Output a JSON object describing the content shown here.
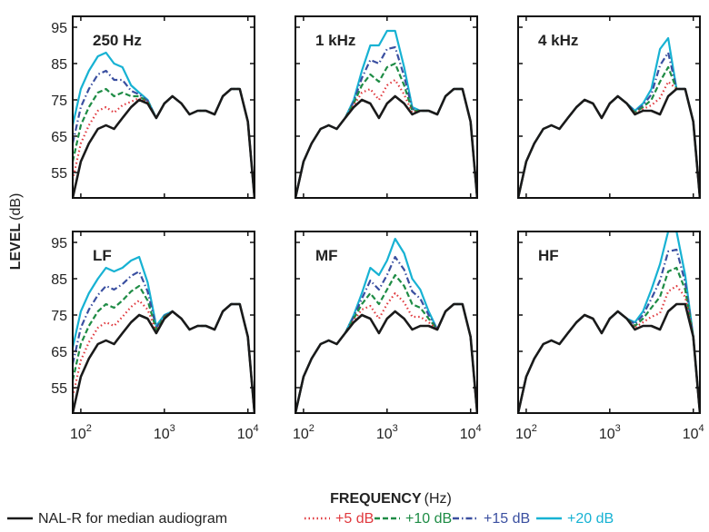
{
  "chart_data": {
    "type": "line",
    "layout": "2x3 small multiples",
    "ylabel_bold": "LEVEL",
    "ylabel_unit": "(dB)",
    "xlabel_bold": "FREQUENCY",
    "xlabel_unit": "(Hz)",
    "x_scale": "log",
    "xlim": [
      80,
      12000
    ],
    "ylim": [
      48,
      98
    ],
    "y_ticks": [
      55,
      65,
      75,
      85,
      95
    ],
    "x_ticks": [
      100,
      1000,
      10000
    ],
    "x_tick_labels": [
      {
        "base": "10",
        "exp": "2"
      },
      {
        "base": "10",
        "exp": "3"
      },
      {
        "base": "10",
        "exp": "4"
      }
    ],
    "grid": false,
    "legend_position": "bottom",
    "legend": [
      {
        "label": "NAL-R for median audiogram",
        "color": "#1a1a1a",
        "dash": "solid"
      },
      {
        "label": "+5 dB",
        "color": "#e0393e",
        "dash": "dotted"
      },
      {
        "label": "+10 dB",
        "color": "#1e8c45",
        "dash": "dashed"
      },
      {
        "label": "+15 dB",
        "color": "#3a4fa0",
        "dash": "dashdot"
      },
      {
        "label": "+20 dB",
        "color": "#17b2d3",
        "dash": "solid"
      }
    ],
    "base_curve": {
      "freqs": [
        80,
        100,
        125,
        160,
        200,
        250,
        315,
        400,
        500,
        630,
        800,
        1000,
        1250,
        1600,
        2000,
        2500,
        3150,
        4000,
        5000,
        6300,
        8000,
        10000,
        12000
      ],
      "values": [
        48,
        58,
        63,
        67,
        68,
        67,
        70,
        73,
        75,
        74,
        70,
        74,
        76,
        74,
        71,
        72,
        72,
        71,
        76,
        78,
        78,
        69,
        48
      ]
    },
    "panels": [
      {
        "title": "250 Hz",
        "boost": [
          10,
          10,
          10,
          10,
          10,
          9,
          7,
          3,
          1,
          0.5,
          0,
          0,
          0,
          0,
          0,
          0,
          0,
          0,
          0,
          0,
          0,
          0,
          0
        ]
      },
      {
        "title": "1 kHz",
        "boost": [
          0,
          0,
          0,
          0,
          0,
          0,
          0,
          1,
          4,
          8,
          10,
          10,
          9,
          5,
          1,
          0,
          0,
          0,
          0,
          0,
          0,
          0,
          0
        ]
      },
      {
        "title": "4 kHz",
        "boost": [
          0,
          0,
          0,
          0,
          0,
          0,
          0,
          0,
          0,
          0,
          0,
          0,
          0,
          0,
          0.5,
          1,
          3,
          9,
          8,
          0,
          0,
          0,
          0
        ]
      },
      {
        "title": "LF",
        "boost": [
          9,
          9,
          9,
          9,
          10,
          10,
          9,
          8.5,
          8,
          5,
          1,
          0.5,
          0,
          0,
          0,
          0,
          0,
          0,
          0,
          0,
          0,
          0,
          0
        ]
      },
      {
        "title": "MF",
        "boost": [
          0,
          0,
          0,
          0,
          0,
          0,
          0,
          1,
          3,
          7,
          8,
          8,
          10,
          9,
          7,
          5,
          2,
          0,
          0,
          0,
          0,
          0,
          0
        ]
      },
      {
        "title": "HF",
        "boost": [
          0,
          0,
          0,
          0,
          0,
          0,
          0,
          0,
          0,
          0,
          0,
          0,
          0,
          0,
          1,
          2,
          5,
          9,
          11,
          10,
          4,
          0,
          0
        ]
      }
    ],
    "offsets_db": [
      5,
      10,
      15,
      20
    ]
  }
}
